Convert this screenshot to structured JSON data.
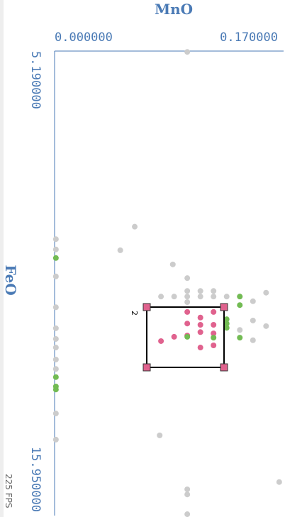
{
  "chart_data": {
    "type": "scatter",
    "x_label": "MnO",
    "y_label": "FeO",
    "xlim": [
      0,
      0.17
    ],
    "ylim": [
      5.19,
      15.95
    ],
    "xticks": [
      {
        "value": 0,
        "label": "0.000000"
      },
      {
        "value": 0.17,
        "label": "0.170000"
      }
    ],
    "yticks": [
      {
        "value": 5.19,
        "label": "5.190000"
      },
      {
        "value": 15.95,
        "label": "15.950000"
      }
    ],
    "axis_color": "#4a7ab5",
    "series": [
      {
        "color": "#cccccc",
        "x": [
          0.101,
          0.061,
          0.05,
          0.001,
          0.001,
          0.001,
          0.001,
          0.001,
          0.001,
          0.001,
          0.001,
          0.001,
          0.001,
          0.001,
          0.09,
          0.101,
          0.081,
          0.091,
          0.101,
          0.101,
          0.101,
          0.111,
          0.111,
          0.121,
          0.121,
          0.131,
          0.141,
          0.151,
          0.161,
          0.151,
          0.161,
          0.141,
          0.151,
          0.08,
          0.101,
          0.101,
          0.101,
          0.171
        ],
        "values": [
          5.21,
          9.29,
          9.84,
          9.58,
          9.82,
          10.45,
          11.17,
          11.66,
          11.91,
          12.11,
          12.39,
          12.61,
          13.65,
          14.26,
          10.17,
          10.49,
          10.92,
          10.92,
          10.79,
          10.92,
          11.05,
          10.79,
          10.92,
          10.79,
          10.92,
          10.92,
          10.92,
          11.03,
          10.83,
          11.48,
          11.61,
          11.7,
          11.94,
          14.16,
          15.42,
          15.54,
          16.0,
          15.25
        ]
      },
      {
        "color": "#e0628e",
        "x": [
          0.101,
          0.111,
          0.121,
          0.111,
          0.121,
          0.111,
          0.121,
          0.101,
          0.091,
          0.081,
          0.111,
          0.121,
          0.101
        ],
        "values": [
          11.28,
          11.41,
          11.28,
          11.58,
          11.58,
          11.75,
          11.78,
          11.83,
          11.86,
          11.96,
          12.11,
          12.06,
          11.55
        ]
      },
      {
        "color": "#72bb53",
        "x": [
          0.001,
          0.001,
          0.001,
          0.001,
          0.141,
          0.141,
          0.131,
          0.131,
          0.121,
          0.101,
          0.141,
          0.131
        ],
        "values": [
          10.02,
          12.8,
          13.02,
          13.09,
          10.92,
          11.12,
          11.45,
          11.65,
          11.88,
          11.86,
          11.88,
          11.55
        ]
      }
    ],
    "selection_label": "2"
  },
  "fps_label": "225 FPS"
}
